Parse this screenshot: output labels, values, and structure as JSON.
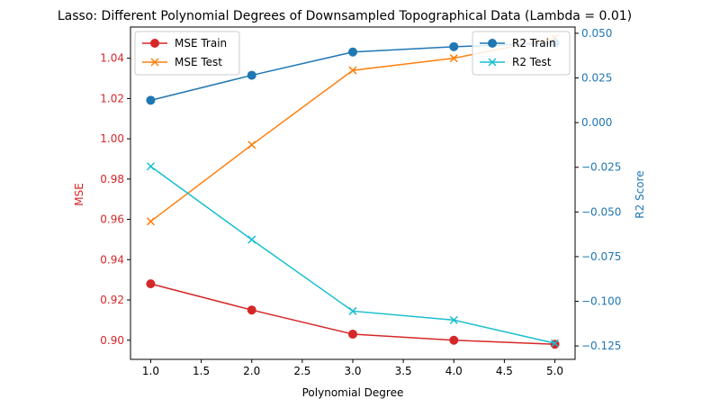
{
  "chart_data": {
    "type": "line",
    "title": "Lasso: Different Polynomial Degrees of Downsampled Topographical Data (Lambda = 0.01)",
    "xlabel": "Polynomial Degree",
    "ylabel_left": "MSE",
    "ylabel_right": "R2 Score",
    "x": [
      1,
      2,
      3,
      4,
      5
    ],
    "xlim": [
      0.8,
      5.2
    ],
    "ylim_left": [
      0.8905,
      1.0555
    ],
    "ylim_right": [
      -0.1325,
      0.0535
    ],
    "xticks": [
      "1.0",
      "1.5",
      "2.0",
      "2.5",
      "3.0",
      "3.5",
      "4.0",
      "4.5",
      "5.0"
    ],
    "yticks_left": [
      "0.90",
      "0.92",
      "0.94",
      "0.96",
      "0.98",
      "1.00",
      "1.02",
      "1.04"
    ],
    "yticks_right": [
      "−0.125",
      "−0.100",
      "−0.075",
      "−0.050",
      "−0.025",
      "0.000",
      "0.025",
      "0.050"
    ],
    "left_axis_color": "#d62728",
    "right_axis_color": "#1f77b4",
    "grid": false,
    "legends": [
      {
        "placement": "top-left",
        "entries": [
          "MSE Train",
          "MSE Test"
        ]
      },
      {
        "placement": "top-right",
        "entries": [
          "R2 Train",
          "R2 Test"
        ]
      }
    ],
    "series": [
      {
        "name": "MSE Train",
        "axis": "left",
        "color": "#d62728",
        "marker": "circle",
        "values": [
          0.928,
          0.915,
          0.903,
          0.9,
          0.898
        ]
      },
      {
        "name": "MSE Test",
        "axis": "left",
        "color": "#ff7f0e",
        "marker": "x",
        "values": [
          0.959,
          0.997,
          1.034,
          1.04,
          1.05
        ]
      },
      {
        "name": "R2 Train",
        "axis": "right",
        "color": "#1f77b4",
        "marker": "circle",
        "values": [
          0.0125,
          0.0265,
          0.0395,
          0.0425,
          0.0445
        ]
      },
      {
        "name": "R2 Test",
        "axis": "right",
        "color": "#17becf",
        "marker": "x",
        "values": [
          -0.0245,
          -0.0655,
          -0.1055,
          -0.1105,
          -0.1235
        ]
      }
    ]
  }
}
